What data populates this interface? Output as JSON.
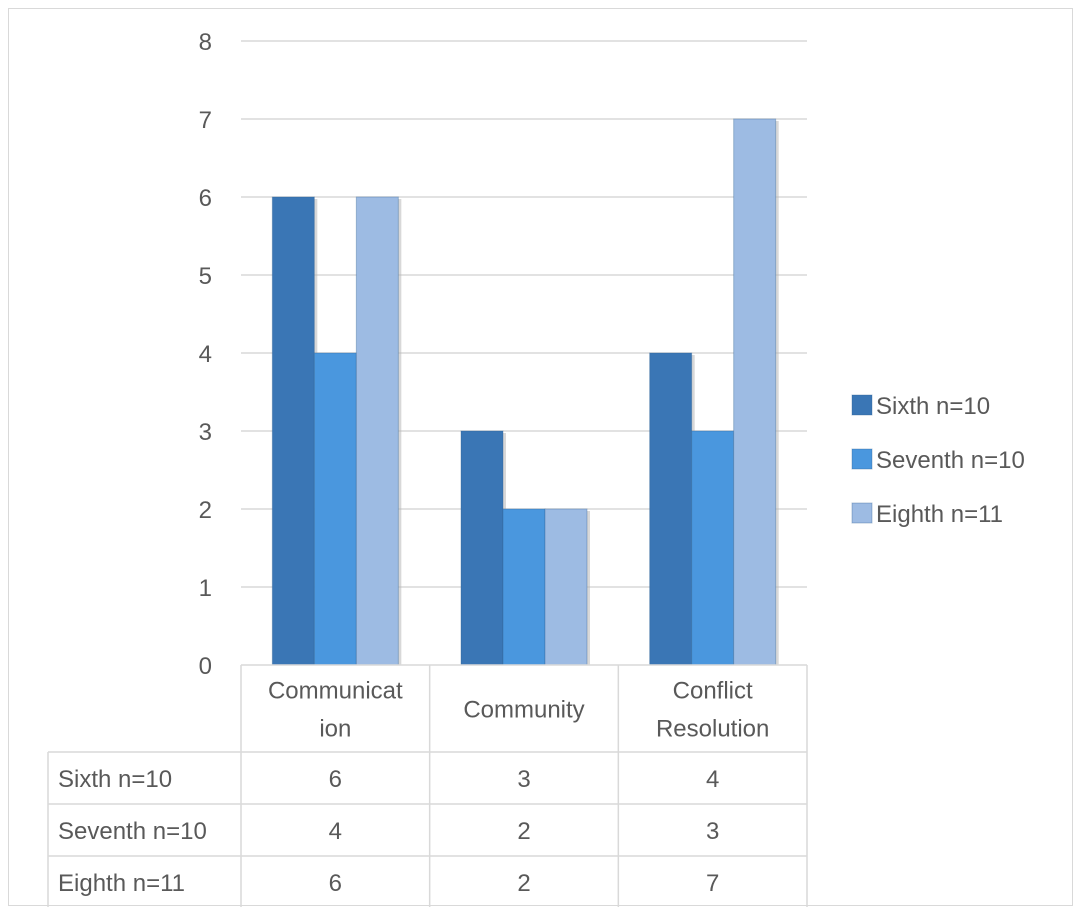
{
  "chart_data": {
    "type": "bar",
    "categories": [
      [
        "Communicat",
        "ion"
      ],
      [
        "Community"
      ],
      [
        "Conflict",
        "Resolution"
      ]
    ],
    "series": [
      {
        "name": "Sixth n=10",
        "values": [
          6,
          3,
          4
        ],
        "color": "#3a76b5"
      },
      {
        "name": "Seventh n=10",
        "values": [
          4,
          2,
          3
        ],
        "color": "#4a97de"
      },
      {
        "name": "Eighth n=11",
        "values": [
          6,
          2,
          7
        ],
        "color": "#9dbbe3"
      }
    ],
    "yticks": [
      "0",
      "1",
      "2",
      "3",
      "4",
      "5",
      "6",
      "7",
      "8"
    ],
    "ylim": [
      0,
      8
    ],
    "grid": true,
    "legend_position": "right",
    "data_table": true
  }
}
